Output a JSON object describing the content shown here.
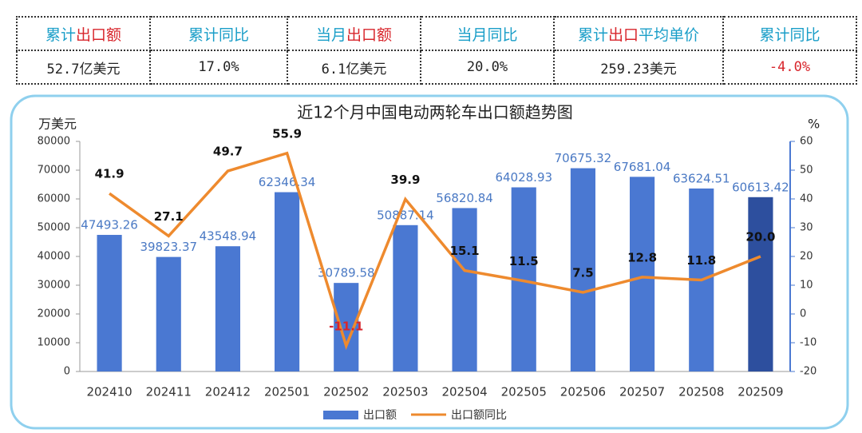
{
  "table": {
    "headers": [
      [
        {
          "text": "累计",
          "color": "#1a9ec8"
        },
        {
          "text": "出口额",
          "color": "#d8262c"
        }
      ],
      [
        {
          "text": "累计同比",
          "color": "#1a9ec8"
        }
      ],
      [
        {
          "text": "当月",
          "color": "#1a9ec8"
        },
        {
          "text": "出口额",
          "color": "#d8262c"
        }
      ],
      [
        {
          "text": "当月同比",
          "color": "#1a9ec8"
        }
      ],
      [
        {
          "text": "累计",
          "color": "#1a9ec8"
        },
        {
          "text": "出口",
          "color": "#d8262c"
        },
        {
          "text": "平均单价",
          "color": "#1a9ec8"
        }
      ],
      [
        {
          "text": "累计同比",
          "color": "#1a9ec8"
        }
      ]
    ],
    "values": [
      {
        "text": "52.7亿美元",
        "color": "#222222"
      },
      {
        "text": "17.0%",
        "color": "#222222"
      },
      {
        "text": "6.1亿美元",
        "color": "#222222"
      },
      {
        "text": "20.0%",
        "color": "#222222"
      },
      {
        "text": "259.23美元",
        "color": "#222222"
      },
      {
        "text": "-4.0%",
        "color": "#d8262c"
      }
    ]
  },
  "chart_data": {
    "type": "combo",
    "title": "近12个月中国电动两轮车出口额趋势图",
    "y_label": "万美元",
    "y2_label": "%",
    "categories": [
      "202410",
      "202411",
      "202412",
      "202501",
      "202502",
      "202503",
      "202504",
      "202505",
      "202506",
      "202507",
      "202508",
      "202509"
    ],
    "ylim": [
      0,
      80000
    ],
    "yticks": [
      0,
      10000,
      20000,
      30000,
      40000,
      50000,
      60000,
      70000,
      80000
    ],
    "y2lim": [
      -20,
      60
    ],
    "y2ticks": [
      -20,
      -10,
      0,
      10,
      20,
      30,
      40,
      50,
      60
    ],
    "series": [
      {
        "name": "出口额",
        "type": "bar",
        "color": "#4a78d2",
        "colors": [
          "#4a78d2",
          "#4a78d2",
          "#4a78d2",
          "#4a78d2",
          "#4a78d2",
          "#4a78d2",
          "#4a78d2",
          "#4a78d2",
          "#4a78d2",
          "#4a78d2",
          "#4a78d2",
          "#2d4f9e"
        ],
        "values": [
          47493.26,
          39823.37,
          43548.94,
          62346.34,
          30789.58,
          50887.14,
          56820.84,
          64028.93,
          70675.32,
          67681.04,
          63624.51,
          60613.42
        ]
      },
      {
        "name": "出口额同比",
        "type": "line",
        "axis": "y2",
        "color": "#ee8a2e",
        "values": [
          41.9,
          27.1,
          49.7,
          55.9,
          -11.1,
          39.9,
          15.1,
          11.5,
          7.5,
          12.8,
          11.8,
          20.0
        ],
        "value_labels": [
          "41.9",
          "27.1",
          "49.7",
          "55.9",
          "-11.1",
          "39.9",
          "15.1",
          "11.5",
          "7.5",
          "12.8",
          "11.8",
          "20.0"
        ]
      }
    ]
  }
}
